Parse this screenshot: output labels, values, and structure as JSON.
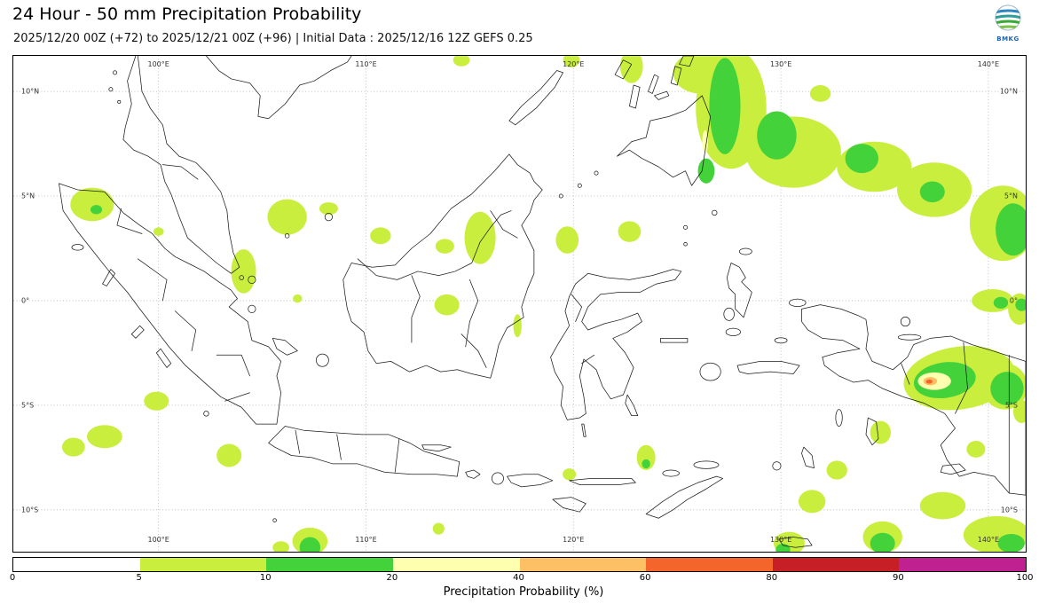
{
  "header": {
    "title": "24 Hour - 50 mm Precipitation Probability",
    "subtitle": "2025/12/20 00Z (+72) to 2025/12/21 00Z (+96) | Initial Data : 2025/12/16 12Z GEFS 0.25",
    "logo_text": "BMKG"
  },
  "map": {
    "extent": {
      "lon_min": 93.0,
      "lon_max": 141.8,
      "lat_min": -12.0,
      "lat_max": 11.7
    },
    "grid": {
      "lons": [
        {
          "value": 100,
          "label": "100°E"
        },
        {
          "value": 110,
          "label": "110°E"
        },
        {
          "value": 120,
          "label": "120°E"
        },
        {
          "value": 130,
          "label": "130°E"
        },
        {
          "value": 140,
          "label": "140°E"
        }
      ],
      "lats": [
        {
          "value": 10,
          "label": "10°N"
        },
        {
          "value": 5,
          "label": "5°N"
        },
        {
          "value": 0,
          "label": "0°"
        },
        {
          "value": -5,
          "label": "5°S"
        },
        {
          "value": -10,
          "label": "10°S"
        }
      ]
    },
    "patches": [
      {
        "lon": 127.6,
        "lat": 9.2,
        "rx": 1.7,
        "ry": 2.9,
        "level": 1
      },
      {
        "lon": 126.1,
        "lat": 10.9,
        "rx": 1.3,
        "ry": 1.0,
        "level": 1
      },
      {
        "lon": 130.6,
        "lat": 7.1,
        "rx": 2.3,
        "ry": 1.7,
        "level": 1
      },
      {
        "lon": 134.5,
        "lat": 6.4,
        "rx": 1.8,
        "ry": 1.2,
        "level": 1
      },
      {
        "lon": 137.4,
        "lat": 5.3,
        "rx": 1.8,
        "ry": 1.3,
        "level": 1
      },
      {
        "lon": 140.7,
        "lat": 3.7,
        "rx": 1.6,
        "ry": 1.8,
        "level": 1
      },
      {
        "lon": 131.9,
        "lat": 9.9,
        "rx": 0.5,
        "ry": 0.4,
        "level": 1
      },
      {
        "lon": 122.8,
        "lat": 11.2,
        "rx": 0.55,
        "ry": 0.8,
        "level": 1
      },
      {
        "lon": 119.9,
        "lat": 11.5,
        "rx": 0.4,
        "ry": 0.35,
        "level": 1
      },
      {
        "lon": 114.6,
        "lat": 11.5,
        "rx": 0.4,
        "ry": 0.3,
        "level": 1
      },
      {
        "lon": 140.2,
        "lat": 0.0,
        "rx": 1.0,
        "ry": 0.55,
        "level": 1
      },
      {
        "lon": 141.5,
        "lat": -0.4,
        "rx": 0.55,
        "ry": 0.75,
        "level": 1
      },
      {
        "lon": 138.6,
        "lat": -3.7,
        "rx": 2.7,
        "ry": 1.5,
        "level": 1,
        "rot": -8
      },
      {
        "lon": 140.8,
        "lat": -4.1,
        "rx": 1.1,
        "ry": 1.1,
        "level": 1
      },
      {
        "lon": 96.8,
        "lat": 4.6,
        "rx": 1.05,
        "ry": 0.8,
        "level": 1
      },
      {
        "lon": 100.0,
        "lat": 3.3,
        "rx": 0.25,
        "ry": 0.2,
        "level": 1
      },
      {
        "lon": 104.1,
        "lat": 1.4,
        "rx": 0.6,
        "ry": 1.05,
        "level": 1
      },
      {
        "lon": 106.2,
        "lat": 4.0,
        "rx": 0.95,
        "ry": 0.85,
        "level": 1
      },
      {
        "lon": 108.2,
        "lat": 4.4,
        "rx": 0.45,
        "ry": 0.3,
        "level": 1
      },
      {
        "lon": 110.7,
        "lat": 3.1,
        "rx": 0.5,
        "ry": 0.4,
        "level": 1
      },
      {
        "lon": 115.5,
        "lat": 3.0,
        "rx": 0.75,
        "ry": 1.25,
        "level": 1
      },
      {
        "lon": 113.8,
        "lat": 2.6,
        "rx": 0.45,
        "ry": 0.35,
        "level": 1
      },
      {
        "lon": 119.7,
        "lat": 2.9,
        "rx": 0.55,
        "ry": 0.65,
        "level": 1
      },
      {
        "lon": 122.7,
        "lat": 3.3,
        "rx": 0.55,
        "ry": 0.5,
        "level": 1
      },
      {
        "lon": 113.9,
        "lat": -0.2,
        "rx": 0.6,
        "ry": 0.5,
        "level": 1
      },
      {
        "lon": 117.3,
        "lat": -1.2,
        "rx": 0.2,
        "ry": 0.55,
        "level": 1
      },
      {
        "lon": 106.7,
        "lat": 0.1,
        "rx": 0.22,
        "ry": 0.2,
        "level": 1
      },
      {
        "lon": 99.9,
        "lat": -4.8,
        "rx": 0.6,
        "ry": 0.45,
        "level": 1
      },
      {
        "lon": 97.4,
        "lat": -6.5,
        "rx": 0.85,
        "ry": 0.55,
        "level": 1
      },
      {
        "lon": 95.9,
        "lat": -7.0,
        "rx": 0.55,
        "ry": 0.45,
        "level": 1
      },
      {
        "lon": 103.4,
        "lat": -7.4,
        "rx": 0.6,
        "ry": 0.55,
        "level": 1
      },
      {
        "lon": 119.8,
        "lat": -8.3,
        "rx": 0.32,
        "ry": 0.28,
        "level": 1
      },
      {
        "lon": 123.5,
        "lat": -7.5,
        "rx": 0.45,
        "ry": 0.6,
        "level": 1
      },
      {
        "lon": 113.5,
        "lat": -10.9,
        "rx": 0.28,
        "ry": 0.28,
        "level": 1
      },
      {
        "lon": 107.3,
        "lat": -11.5,
        "rx": 0.85,
        "ry": 0.65,
        "level": 1
      },
      {
        "lon": 105.9,
        "lat": -11.8,
        "rx": 0.4,
        "ry": 0.3,
        "level": 1
      },
      {
        "lon": 131.5,
        "lat": -9.6,
        "rx": 0.65,
        "ry": 0.55,
        "level": 1
      },
      {
        "lon": 132.7,
        "lat": -8.1,
        "rx": 0.5,
        "ry": 0.45,
        "level": 1
      },
      {
        "lon": 134.8,
        "lat": -6.3,
        "rx": 0.5,
        "ry": 0.55,
        "level": 1
      },
      {
        "lon": 137.8,
        "lat": -9.8,
        "rx": 1.1,
        "ry": 0.65,
        "level": 1
      },
      {
        "lon": 140.4,
        "lat": -11.2,
        "rx": 1.6,
        "ry": 0.9,
        "level": 1
      },
      {
        "lon": 134.9,
        "lat": -11.3,
        "rx": 0.95,
        "ry": 0.75,
        "level": 1
      },
      {
        "lon": 130.4,
        "lat": -11.6,
        "rx": 0.75,
        "ry": 0.55,
        "level": 1
      },
      {
        "lon": 141.6,
        "lat": -5.3,
        "rx": 0.4,
        "ry": 0.55,
        "level": 1
      },
      {
        "lon": 139.4,
        "lat": -7.1,
        "rx": 0.45,
        "ry": 0.4,
        "level": 1
      },
      {
        "lon": 127.3,
        "lat": 9.3,
        "rx": 0.75,
        "ry": 2.3,
        "level": 2
      },
      {
        "lon": 129.8,
        "lat": 7.9,
        "rx": 0.95,
        "ry": 1.15,
        "level": 2
      },
      {
        "lon": 126.4,
        "lat": 6.2,
        "rx": 0.4,
        "ry": 0.6,
        "level": 2
      },
      {
        "lon": 133.9,
        "lat": 6.8,
        "rx": 0.8,
        "ry": 0.7,
        "level": 2
      },
      {
        "lon": 137.3,
        "lat": 5.2,
        "rx": 0.6,
        "ry": 0.5,
        "level": 2
      },
      {
        "lon": 141.2,
        "lat": 3.4,
        "rx": 0.85,
        "ry": 1.25,
        "level": 2
      },
      {
        "lon": 140.6,
        "lat": -0.1,
        "rx": 0.35,
        "ry": 0.28,
        "level": 2
      },
      {
        "lon": 141.6,
        "lat": -0.2,
        "rx": 0.3,
        "ry": 0.3,
        "level": 2
      },
      {
        "lon": 137.9,
        "lat": -3.8,
        "rx": 1.5,
        "ry": 0.85,
        "level": 2,
        "rot": -8
      },
      {
        "lon": 140.9,
        "lat": -4.2,
        "rx": 0.8,
        "ry": 0.8,
        "level": 2
      },
      {
        "lon": 97.0,
        "lat": 4.35,
        "rx": 0.28,
        "ry": 0.22,
        "level": 2
      },
      {
        "lon": 123.5,
        "lat": -7.8,
        "rx": 0.2,
        "ry": 0.22,
        "level": 2
      },
      {
        "lon": 107.3,
        "lat": -11.8,
        "rx": 0.5,
        "ry": 0.5,
        "level": 2
      },
      {
        "lon": 141.1,
        "lat": -11.6,
        "rx": 0.65,
        "ry": 0.45,
        "level": 2
      },
      {
        "lon": 134.9,
        "lat": -11.6,
        "rx": 0.6,
        "ry": 0.5,
        "level": 2
      },
      {
        "lon": 130.1,
        "lat": -11.9,
        "rx": 0.35,
        "ry": 0.28,
        "level": 2
      },
      {
        "lon": 126.35,
        "lat": 7.6,
        "rx": 0.14,
        "ry": 0.55,
        "level": 3
      },
      {
        "lon": 137.4,
        "lat": -3.85,
        "rx": 0.8,
        "ry": 0.42,
        "level": 3
      },
      {
        "lon": 137.2,
        "lat": -3.85,
        "rx": 0.33,
        "ry": 0.2,
        "level": 4
      },
      {
        "lon": 137.15,
        "lat": -3.87,
        "rx": 0.16,
        "ry": 0.1,
        "level": 5
      }
    ]
  },
  "legend": {
    "label": "Precipitation Probability (%)",
    "ticks": [
      "0",
      "5",
      "10",
      "20",
      "40",
      "60",
      "80",
      "90",
      "100"
    ],
    "colors": [
      "#ffffff",
      "#c9ee3e",
      "#43d23a",
      "#ffffb0",
      "#fdc064",
      "#f4652c",
      "#c62026",
      "#bf2290"
    ]
  },
  "style_colors": {
    "coastline": "#1b1b1b",
    "gridline": "#b3b3b3"
  }
}
